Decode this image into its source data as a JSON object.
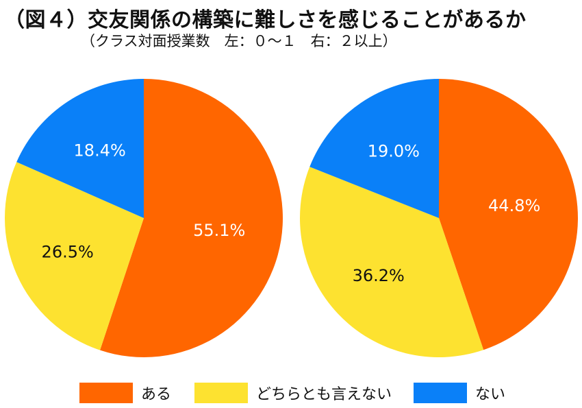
{
  "title": "（図４）交友関係の構築に難しさを感じることがあるか",
  "subtitle": "（クラス対面授業数　左：０～１　右：２以上）",
  "colors": {
    "aru": "#ff6600",
    "dochira": "#fde230",
    "nai": "#0a80f8"
  },
  "legend": [
    {
      "label": "ある",
      "color": "#ff6600"
    },
    {
      "label": "どちらとも言えない",
      "color": "#fde230"
    },
    {
      "label": "ない",
      "color": "#0a80f8"
    }
  ],
  "chart_data": [
    {
      "type": "pie",
      "title": "",
      "panel": "左：０～１",
      "categories": [
        "ある",
        "どちらとも言えない",
        "ない"
      ],
      "values": [
        55.1,
        26.5,
        18.4
      ],
      "labels": [
        "55.1%",
        "26.5%",
        "18.4%"
      ],
      "start": "12 o'clock, clockwise"
    },
    {
      "type": "pie",
      "title": "",
      "panel": "右：２以上",
      "categories": [
        "ある",
        "どちらとも言えない",
        "ない"
      ],
      "values": [
        44.8,
        36.2,
        19.0
      ],
      "labels": [
        "44.8%",
        "36.2%",
        "19.0%"
      ],
      "start": "12 o'clock, clockwise"
    }
  ]
}
